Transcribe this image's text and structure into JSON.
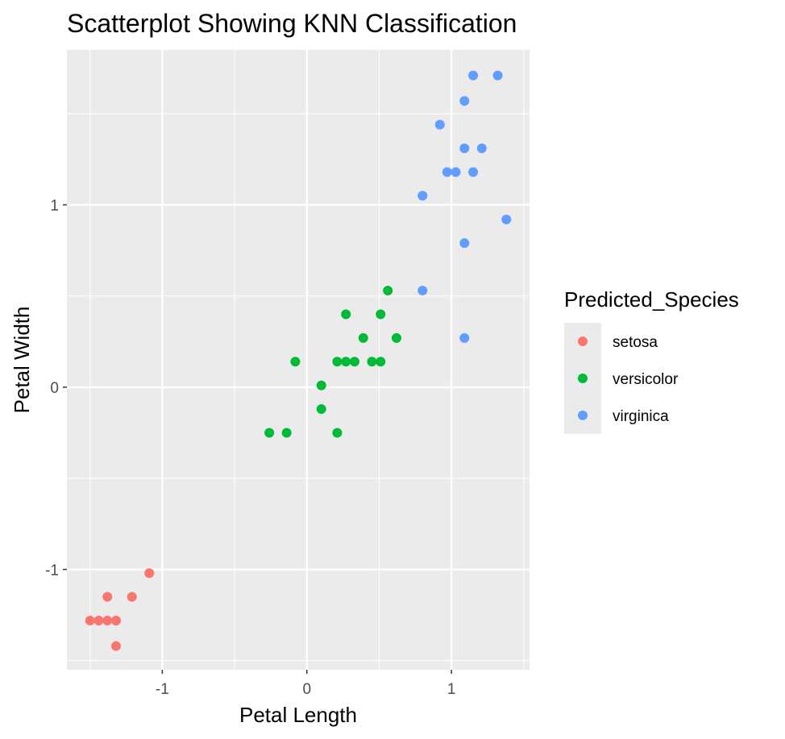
{
  "chart_data": {
    "type": "scatter",
    "title": "Scatterplot Showing KNN Classification",
    "xlabel": "Petal Length",
    "ylabel": "Petal Width",
    "xlim": [
      -1.66,
      1.54
    ],
    "ylim": [
      -1.55,
      1.85
    ],
    "x_ticks": [
      -1,
      0,
      1
    ],
    "x_tick_labels": [
      "-1",
      "0",
      "1"
    ],
    "y_ticks": [
      -1,
      0,
      1
    ],
    "y_tick_labels": [
      "-1",
      "0",
      "1"
    ],
    "grid": true,
    "legend": {
      "title": "Predicted_Species",
      "placement": "right"
    },
    "series": [
      {
        "name": "setosa",
        "color": "#F8766D",
        "points": [
          [
            -1.5,
            -1.28
          ],
          [
            -1.44,
            -1.28
          ],
          [
            -1.38,
            -1.28
          ],
          [
            -1.32,
            -1.28
          ],
          [
            -1.32,
            -1.28
          ],
          [
            -1.38,
            -1.15
          ],
          [
            -1.21,
            -1.15
          ],
          [
            -1.32,
            -1.42
          ],
          [
            -1.09,
            -1.02
          ]
        ]
      },
      {
        "name": "versicolor",
        "color": "#00BA38",
        "points": [
          [
            -0.26,
            -0.25
          ],
          [
            -0.14,
            -0.25
          ],
          [
            0.21,
            -0.25
          ],
          [
            0.1,
            -0.12
          ],
          [
            0.1,
            0.01
          ],
          [
            -0.08,
            0.14
          ],
          [
            0.21,
            0.14
          ],
          [
            0.27,
            0.14
          ],
          [
            0.33,
            0.14
          ],
          [
            0.45,
            0.14
          ],
          [
            0.51,
            0.14
          ],
          [
            0.39,
            0.27
          ],
          [
            0.62,
            0.27
          ],
          [
            0.27,
            0.4
          ],
          [
            0.51,
            0.4
          ],
          [
            0.56,
            0.53
          ]
        ]
      },
      {
        "name": "virginica",
        "color": "#619CFF",
        "points": [
          [
            1.09,
            0.27
          ],
          [
            0.8,
            0.53
          ],
          [
            1.09,
            0.79
          ],
          [
            1.38,
            0.92
          ],
          [
            0.8,
            1.05
          ],
          [
            0.97,
            1.18
          ],
          [
            1.03,
            1.18
          ],
          [
            1.15,
            1.18
          ],
          [
            1.09,
            1.31
          ],
          [
            1.21,
            1.31
          ],
          [
            0.92,
            1.44
          ],
          [
            1.09,
            1.57
          ],
          [
            1.15,
            1.71
          ],
          [
            1.32,
            1.71
          ]
        ]
      }
    ]
  }
}
